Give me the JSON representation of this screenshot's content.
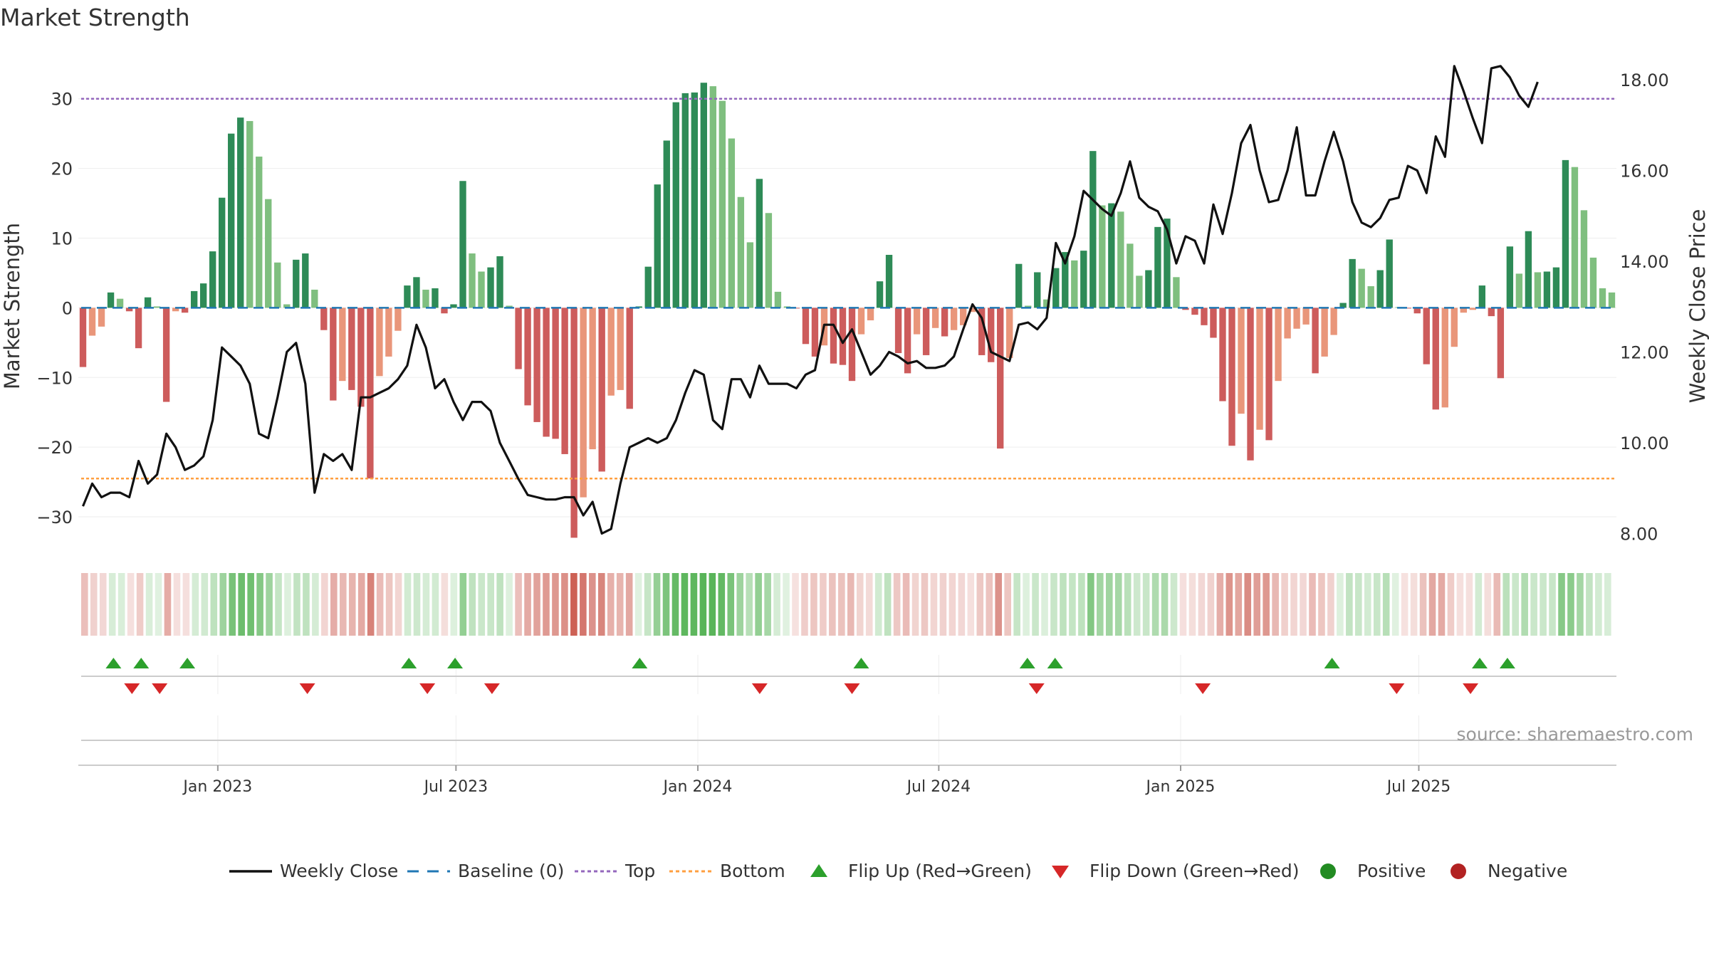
{
  "chart_data": {
    "type": "bar",
    "title": "Market Strength",
    "ylabel": "Market Strength",
    "y2label": "Weekly Close Price",
    "ylim": [
      -35,
      36
    ],
    "y2lim": [
      7.6,
      18.5
    ],
    "yticks": [
      30,
      20,
      10,
      0,
      -10,
      -20,
      -30
    ],
    "ytick_labels": [
      "30",
      "20",
      "10",
      "0",
      "−10",
      "−20",
      "−30"
    ],
    "y2ticks": [
      18,
      16,
      14,
      12,
      10,
      8
    ],
    "y2tick_labels": [
      "18.00",
      "16.00",
      "14.00",
      "12.00",
      "10.00",
      "8.00"
    ],
    "x_labels": [
      "Jan 2023",
      "Jul 2023",
      "Jan 2024",
      "Jul 2024",
      "Jan 2025",
      "Jul 2025"
    ],
    "x_label_weeks": [
      14.3,
      40.1,
      66.3,
      92.4,
      118.6,
      144.4
    ],
    "top_level": 30,
    "bottom_level": -24.5,
    "baseline": 0,
    "strength": [
      -8.5,
      -4,
      -2.7,
      2.2,
      1.3,
      -0.5,
      -5.8,
      1.5,
      0.2,
      -13.5,
      -0.5,
      -0.7,
      2.4,
      3.5,
      8.1,
      15.8,
      25,
      27.3,
      26.8,
      21.7,
      15.6,
      6.5,
      0.5,
      6.9,
      7.8,
      2.6,
      -3.2,
      -13.3,
      -10.5,
      -11.8,
      -14.2,
      -24.5,
      -9.8,
      -7,
      -3.3,
      3.2,
      4.4,
      2.6,
      2.8,
      -0.8,
      0.5,
      18.2,
      7.8,
      5.2,
      5.8,
      7.4,
      0.3,
      -8.8,
      -14,
      -16.4,
      -18.5,
      -18.8,
      -21,
      -33,
      -27.2,
      -20.3,
      -23.5,
      -12.6,
      -11.8,
      -14.5,
      0.2,
      5.9,
      17.7,
      24,
      29.5,
      30.8,
      30.9,
      32.3,
      31.8,
      29.7,
      24.3,
      15.9,
      9.4,
      18.5,
      13.6,
      2.3,
      0.2,
      -0.1,
      -5.2,
      -7,
      -5.4,
      -8,
      -8.2,
      -10.5,
      -3.8,
      -1.8,
      3.8,
      7.6,
      -6.5,
      -9.4,
      -3.8,
      -6.8,
      -2.9,
      -4.1,
      -3.2,
      -2.5,
      -0.6,
      -6.8,
      -7.8,
      -20.2,
      -7.2,
      6.3,
      0.3,
      5.1,
      1.2,
      5.7,
      8,
      6.8,
      8.2,
      22.5,
      14.7,
      15,
      13.8,
      9.2,
      4.6,
      5.4,
      11.6,
      12.8,
      4.4,
      -0.3,
      -1,
      -2.5,
      -4.3,
      -13.4,
      -19.8,
      -15.2,
      -21.9,
      -17.5,
      -19,
      -10.5,
      -4.4,
      -3,
      -2.4,
      -9.4,
      -7,
      -3.9,
      0.7,
      7,
      5.6,
      3.1,
      5.4,
      9.8,
      0.1,
      -0.1,
      -0.8,
      -8.1,
      -14.6,
      -14.3,
      -5.6,
      -0.7,
      -0.3,
      3.2,
      -1.2,
      -10.1,
      8.8,
      4.9,
      11,
      5.1,
      5.2,
      5.8,
      21.2,
      20.2,
      14,
      7.2,
      2.8,
      2.2
    ],
    "close": [
      8.6,
      9.1,
      8.8,
      8.9,
      8.9,
      8.8,
      9.6,
      9.1,
      9.3,
      10.2,
      9.9,
      9.4,
      9.5,
      9.7,
      10.5,
      12.1,
      11.9,
      11.7,
      11.3,
      10.2,
      10.1,
      11,
      12.0,
      12.2,
      11.3,
      8.9,
      9.75,
      9.6,
      9.75,
      9.4,
      11.0,
      11.0,
      11.1,
      11.2,
      11.4,
      11.7,
      12.6,
      12.1,
      11.2,
      11.4,
      10.9,
      10.5,
      10.9,
      10.9,
      10.7,
      10,
      9.6,
      9.2,
      8.85,
      8.8,
      8.75,
      8.75,
      8.8,
      8.8,
      8.4,
      8.7,
      8.0,
      8.1,
      9.1,
      9.9,
      10,
      10.1,
      10,
      10.1,
      10.5,
      11.1,
      11.6,
      11.5,
      10.5,
      10.3,
      11.4,
      11.4,
      11.0,
      11.7,
      11.3,
      11.3,
      11.3,
      11.2,
      11.5,
      11.6,
      12.6,
      12.6,
      12.2,
      12.5,
      12.0,
      11.5,
      11.7,
      12.0,
      11.9,
      11.75,
      11.8,
      11.65,
      11.65,
      11.7,
      11.9,
      12.5,
      13.05,
      12.75,
      12.0,
      11.9,
      11.8,
      12.6,
      12.65,
      12.5,
      12.75,
      14.4,
      13.95,
      14.55,
      15.55,
      15.35,
      15.15,
      15.0,
      15.5,
      16.2,
      15.4,
      15.2,
      15.1,
      14.7,
      13.95,
      14.55,
      14.45,
      13.95,
      15.25,
      14.6,
      15.5,
      16.6,
      17.0,
      16.0,
      15.3,
      15.35,
      16.0,
      16.95,
      15.45,
      15.45,
      16.2,
      16.85,
      16.2,
      15.3,
      14.85,
      14.75,
      14.95,
      15.35,
      15.4,
      16.1,
      16.0,
      15.5,
      16.75,
      16.3,
      18.3,
      17.75,
      17.15,
      16.6,
      18.25,
      18.3,
      18.05,
      17.65,
      17.4,
      17.95
    ],
    "flip_up_weeks": [
      3,
      6,
      11,
      35,
      40,
      60,
      84,
      102,
      105,
      135,
      151,
      154
    ],
    "flip_down_weeks": [
      5,
      8,
      24,
      37,
      44,
      73,
      83,
      103,
      121,
      142,
      150
    ],
    "legend": {
      "weekly_close": "Weekly Close",
      "baseline": "Baseline (0)",
      "top": "Top",
      "bottom": "Bottom",
      "flip_up": "Flip Up (Red→Green)",
      "flip_down": "Flip Down (Green→Red)",
      "positive": "Positive",
      "negative": "Negative"
    },
    "legend_position": "bottom",
    "source": "source: sharemaestro.com",
    "colors": {
      "pos_strong": "#2e8b57",
      "pos_light": "#7fbf7f",
      "neg_strong": "#cd5c5c",
      "neg_light": "#e9967a",
      "close": "#111111",
      "baseline": "#1f77b4",
      "top": "#9467bd",
      "bottom": "#ff9f40",
      "flip_up": "#2ca02c",
      "flip_down": "#d62728",
      "positive_dot": "#228b22",
      "negative_dot": "#b22222"
    }
  }
}
